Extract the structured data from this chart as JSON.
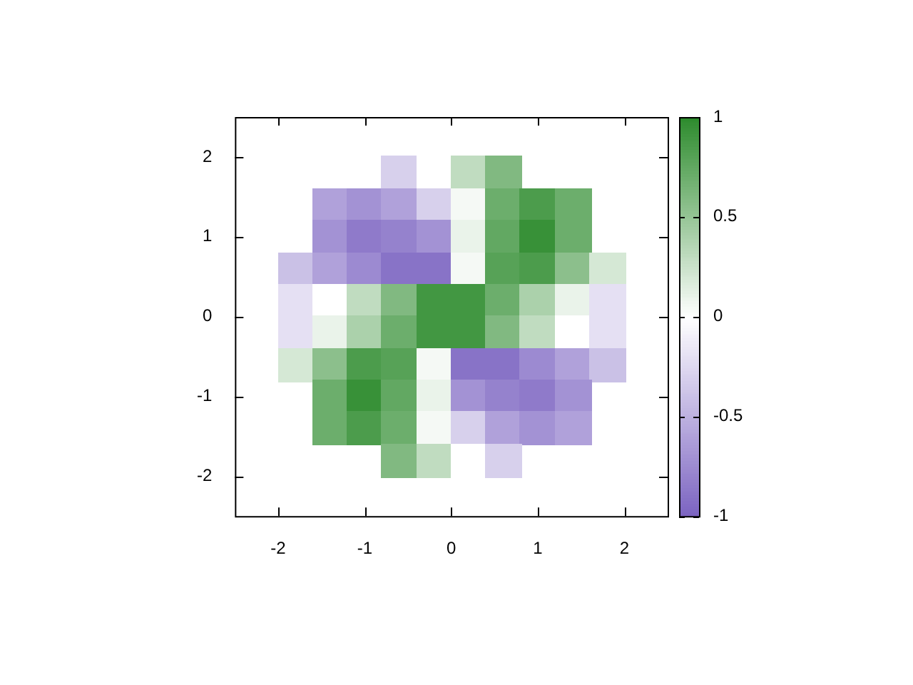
{
  "chart_data": {
    "type": "heatmap",
    "x": [
      -1.8,
      -1.4,
      -1.0,
      -0.6,
      -0.2,
      0.2,
      0.6,
      1.0,
      1.4,
      1.8
    ],
    "y": [
      1.8,
      1.4,
      1.0,
      0.6,
      0.2,
      -0.2,
      -0.6,
      -1.0,
      -1.4,
      -1.8
    ],
    "cells": [
      [
        null,
        null,
        null,
        -0.3,
        0.0,
        0.3,
        0.6,
        null,
        null,
        null
      ],
      [
        null,
        -0.6,
        -0.7,
        -0.6,
        -0.3,
        0.05,
        0.7,
        0.85,
        0.7,
        null
      ],
      [
        null,
        -0.7,
        -0.85,
        -0.8,
        -0.7,
        0.1,
        0.75,
        0.95,
        0.7,
        null
      ],
      [
        -0.4,
        -0.6,
        -0.75,
        -0.9,
        -0.9,
        0.05,
        0.8,
        0.85,
        0.55,
        0.2
      ],
      [
        -0.2,
        0.0,
        0.3,
        0.6,
        0.9,
        0.9,
        0.7,
        0.4,
        0.1,
        -0.2
      ],
      [
        -0.2,
        0.1,
        0.4,
        0.7,
        0.9,
        0.9,
        0.6,
        0.3,
        0.0,
        -0.2
      ],
      [
        0.2,
        0.55,
        0.85,
        0.8,
        0.05,
        -0.9,
        -0.9,
        -0.75,
        -0.6,
        -0.4
      ],
      [
        null,
        0.7,
        0.95,
        0.75,
        0.1,
        -0.7,
        -0.8,
        -0.85,
        -0.7,
        null
      ],
      [
        null,
        0.7,
        0.85,
        0.7,
        0.05,
        -0.3,
        -0.6,
        -0.7,
        -0.6,
        null
      ],
      [
        null,
        null,
        null,
        0.6,
        0.3,
        0.0,
        -0.3,
        null,
        null,
        null
      ]
    ],
    "colors": [
      "#7b63c1",
      "#ffffff",
      "#2d8b2d"
    ],
    "xlim": [
      -2.5,
      2.5
    ],
    "xticks": [
      -2,
      -1,
      0,
      1,
      2
    ],
    "ylim": [
      -2.5,
      2.5
    ],
    "yticks": [
      -2,
      -1,
      0,
      1,
      2
    ],
    "clim": [
      -1,
      1
    ],
    "cticks": [
      -1,
      -0.5,
      0,
      0.5,
      1
    ]
  }
}
